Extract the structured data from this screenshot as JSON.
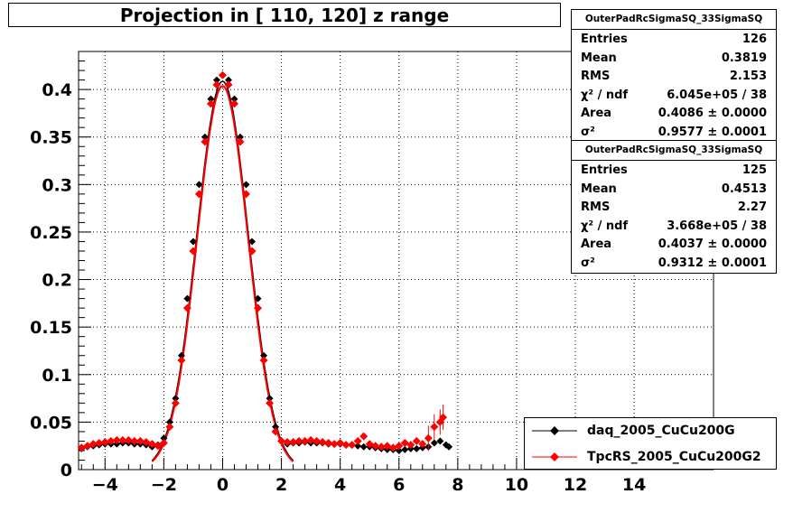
{
  "chart_data": {
    "type": "scatter",
    "title": "Projection in [ 110, 120] z range",
    "xlim": [
      -4.9,
      16.7
    ],
    "ylim": [
      0,
      0.44
    ],
    "grid": true,
    "x_ticks": [
      "−4",
      "−2",
      "0",
      "2",
      "4",
      "6",
      "8",
      "10",
      "12",
      "14"
    ],
    "x_tick_values": [
      -4,
      -2,
      0,
      2,
      4,
      6,
      8,
      10,
      12,
      14
    ],
    "y_ticks": [
      "0",
      "0.05",
      "0.1",
      "0.15",
      "0.2",
      "0.25",
      "0.3",
      "0.35",
      "0.4"
    ],
    "y_tick_values": [
      0,
      0.05,
      0.1,
      0.15,
      0.2,
      0.25,
      0.3,
      0.35,
      0.4
    ],
    "series": [
      {
        "name": "daq_2005_CuCu200G",
        "color": "#000000",
        "x": [
          -4.8,
          -4.6,
          -4.4,
          -4.2,
          -4.0,
          -3.8,
          -3.6,
          -3.4,
          -3.2,
          -3.0,
          -2.8,
          -2.6,
          -2.4,
          -2.2,
          -2.0,
          -1.8,
          -1.6,
          -1.4,
          -1.2,
          -1.0,
          -0.8,
          -0.6,
          -0.4,
          -0.2,
          0.0,
          0.2,
          0.4,
          0.6,
          0.8,
          1.0,
          1.2,
          1.4,
          1.6,
          1.8,
          2.0,
          2.2,
          2.4,
          2.6,
          2.8,
          3.0,
          3.2,
          3.4,
          3.6,
          3.8,
          4.0,
          4.2,
          4.4,
          4.6,
          4.8,
          5.0,
          5.2,
          5.4,
          5.6,
          5.8,
          6.0,
          6.2,
          6.4,
          6.6,
          6.8,
          7.0,
          7.2,
          7.4,
          7.6,
          7.7
        ],
        "y": [
          0.022,
          0.024,
          0.025,
          0.026,
          0.027,
          0.027,
          0.027,
          0.028,
          0.028,
          0.027,
          0.027,
          0.026,
          0.024,
          0.026,
          0.033,
          0.05,
          0.075,
          0.12,
          0.18,
          0.24,
          0.3,
          0.35,
          0.39,
          0.41,
          0.415,
          0.41,
          0.39,
          0.35,
          0.3,
          0.24,
          0.18,
          0.12,
          0.075,
          0.045,
          0.03,
          0.027,
          0.028,
          0.028,
          0.029,
          0.028,
          0.028,
          0.028,
          0.027,
          0.027,
          0.027,
          0.026,
          0.026,
          0.025,
          0.024,
          0.024,
          0.023,
          0.022,
          0.021,
          0.021,
          0.02,
          0.021,
          0.022,
          0.022,
          0.023,
          0.024,
          0.028,
          0.03,
          0.026,
          0.024
        ]
      },
      {
        "name": "TpcRS_2005_CuCu200G2",
        "color": "#ff0000",
        "x": [
          -4.8,
          -4.6,
          -4.4,
          -4.2,
          -4.0,
          -3.8,
          -3.6,
          -3.4,
          -3.2,
          -3.0,
          -2.8,
          -2.6,
          -2.4,
          -2.2,
          -2.0,
          -1.8,
          -1.6,
          -1.4,
          -1.2,
          -1.0,
          -0.8,
          -0.6,
          -0.4,
          -0.2,
          0.0,
          0.2,
          0.4,
          0.6,
          0.8,
          1.0,
          1.2,
          1.4,
          1.6,
          1.8,
          2.0,
          2.2,
          2.4,
          2.6,
          2.8,
          3.0,
          3.2,
          3.4,
          3.6,
          3.8,
          4.0,
          4.2,
          4.4,
          4.6,
          4.8,
          5.0,
          5.2,
          5.4,
          5.6,
          5.8,
          6.0,
          6.2,
          6.4,
          6.6,
          6.8,
          7.0,
          7.2,
          7.4,
          7.5
        ],
        "y": [
          0.023,
          0.025,
          0.027,
          0.028,
          0.029,
          0.03,
          0.031,
          0.031,
          0.031,
          0.03,
          0.03,
          0.029,
          0.027,
          0.025,
          0.028,
          0.045,
          0.07,
          0.115,
          0.17,
          0.23,
          0.29,
          0.345,
          0.385,
          0.405,
          0.415,
          0.405,
          0.385,
          0.345,
          0.29,
          0.23,
          0.17,
          0.115,
          0.07,
          0.04,
          0.03,
          0.029,
          0.029,
          0.03,
          0.03,
          0.031,
          0.03,
          0.029,
          0.028,
          0.027,
          0.028,
          0.026,
          0.026,
          0.03,
          0.035,
          0.027,
          0.025,
          0.024,
          0.025,
          0.023,
          0.025,
          0.028,
          0.026,
          0.03,
          0.027,
          0.033,
          0.045,
          0.05,
          0.055
        ]
      }
    ],
    "stats": [
      {
        "name": "OuterPadRcSigmaSQ_33SigmaSQ",
        "rows": [
          {
            "label": "Entries",
            "value": "126"
          },
          {
            "label": "Mean",
            "value": "0.3819"
          },
          {
            "label": "RMS",
            "value": "2.153"
          },
          {
            "label": "χ² / ndf",
            "value": "6.045e+05 / 38"
          },
          {
            "label": "Area",
            "value": "0.4086 ± 0.0000"
          },
          {
            "label": "σ²",
            "value": "0.9577 ± 0.0001"
          }
        ]
      },
      {
        "name": "OuterPadRcSigmaSQ_33SigmaSQ",
        "rows": [
          {
            "label": "Entries",
            "value": "125"
          },
          {
            "label": "Mean",
            "value": "0.4513"
          },
          {
            "label": "RMS",
            "value": "2.27"
          },
          {
            "label": "χ² / ndf",
            "value": "3.668e+05 / 38"
          },
          {
            "label": "Area",
            "value": "0.4037 ± 0.0000"
          },
          {
            "label": "σ²",
            "value": "0.9312 ± 0.0001"
          }
        ]
      }
    ]
  }
}
